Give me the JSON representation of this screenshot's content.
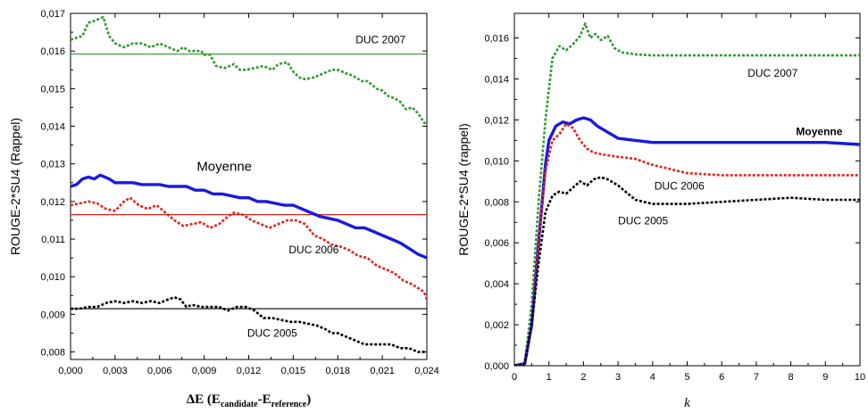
{
  "chart_data": [
    {
      "type": "line",
      "xlabel": {
        "main": "ΔE (E",
        "sub1": "candidate",
        "mid": "-E",
        "sub2": "reference",
        "end": ")"
      },
      "ylabel": "ROUGE-2*SU4 (Rappel)",
      "xlim": [
        0,
        0.024
      ],
      "ylim": [
        0.0078,
        0.017
      ],
      "xticks": [
        "0,000",
        "0,003",
        "0,006",
        "0,009",
        "0,012",
        "0,015",
        "0,018",
        "0,021",
        "0,024"
      ],
      "yticks": [
        "0,008",
        "0,009",
        "0,010",
        "0,011",
        "0,012",
        "0,013",
        "0,014",
        "0,015",
        "0,016",
        "0,017"
      ],
      "series": [
        {
          "name": "DUC 2007",
          "color": "#2e9a2e",
          "style": "dotted",
          "width": 2.6,
          "x": [
            0,
            0.0008,
            0.0012,
            0.0016,
            0.0022,
            0.0026,
            0.003,
            0.0036,
            0.0042,
            0.0048,
            0.0054,
            0.006,
            0.0066,
            0.0072,
            0.0076,
            0.008,
            0.0084,
            0.0088,
            0.009,
            0.0094,
            0.0098,
            0.0104,
            0.011,
            0.0114,
            0.0118,
            0.0124,
            0.013,
            0.0136,
            0.014,
            0.0146,
            0.015,
            0.0154,
            0.0158,
            0.0164,
            0.017,
            0.0176,
            0.018,
            0.0186,
            0.019,
            0.0196,
            0.02,
            0.0206,
            0.021,
            0.0214,
            0.0218,
            0.0222,
            0.0226,
            0.023,
            0.0234,
            0.0238,
            0.024
          ],
          "y": [
            0.0163,
            0.0164,
            0.01675,
            0.0168,
            0.0169,
            0.0164,
            0.0162,
            0.0161,
            0.0162,
            0.0162,
            0.0161,
            0.0162,
            0.0161,
            0.016,
            0.0161,
            0.016,
            0.016,
            0.016,
            0.0159,
            0.0159,
            0.0156,
            0.01555,
            0.01565,
            0.0155,
            0.0155,
            0.01555,
            0.0156,
            0.0155,
            0.01565,
            0.0157,
            0.01545,
            0.0153,
            0.01525,
            0.0153,
            0.0154,
            0.0155,
            0.0155,
            0.0154,
            0.01535,
            0.0152,
            0.0152,
            0.015,
            0.01495,
            0.0148,
            0.01475,
            0.01465,
            0.01445,
            0.0145,
            0.01435,
            0.0141,
            0.01405
          ]
        },
        {
          "name": "Moyenne",
          "color": "#1a1adc",
          "style": "solid",
          "width": 3.4,
          "x": [
            0,
            0.0004,
            0.0008,
            0.0012,
            0.0016,
            0.002,
            0.0026,
            0.003,
            0.0036,
            0.0042,
            0.0048,
            0.0054,
            0.006,
            0.0066,
            0.0072,
            0.0078,
            0.0084,
            0.009,
            0.0096,
            0.0102,
            0.0108,
            0.0114,
            0.012,
            0.0126,
            0.0132,
            0.0138,
            0.0144,
            0.015,
            0.0156,
            0.0162,
            0.0168,
            0.0174,
            0.018,
            0.0186,
            0.0192,
            0.0198,
            0.0204,
            0.021,
            0.0216,
            0.0222,
            0.0228,
            0.0234,
            0.024
          ],
          "y": [
            0.0124,
            0.01245,
            0.0126,
            0.01265,
            0.0126,
            0.0127,
            0.0126,
            0.0125,
            0.0125,
            0.0125,
            0.01245,
            0.01245,
            0.01245,
            0.0124,
            0.0124,
            0.0124,
            0.0123,
            0.0123,
            0.0122,
            0.0122,
            0.01215,
            0.0121,
            0.0121,
            0.012,
            0.012,
            0.01195,
            0.0119,
            0.0119,
            0.0118,
            0.0117,
            0.0116,
            0.01155,
            0.0115,
            0.0114,
            0.0113,
            0.0113,
            0.0112,
            0.0111,
            0.011,
            0.0109,
            0.01075,
            0.0106,
            0.0105
          ]
        },
        {
          "name": "DUC 2006",
          "color": "#e0241c",
          "style": "dotted",
          "width": 2.6,
          "x": [
            0,
            0.0006,
            0.0012,
            0.0018,
            0.0024,
            0.003,
            0.0036,
            0.004,
            0.0046,
            0.0052,
            0.0058,
            0.0064,
            0.007,
            0.0076,
            0.0082,
            0.0088,
            0.0094,
            0.01,
            0.0106,
            0.011,
            0.0116,
            0.0122,
            0.0128,
            0.0134,
            0.014,
            0.0146,
            0.0152,
            0.0158,
            0.0164,
            0.017,
            0.0176,
            0.0182,
            0.0188,
            0.0194,
            0.02,
            0.0206,
            0.0212,
            0.0218,
            0.0224,
            0.023,
            0.0234,
            0.0238,
            0.024
          ],
          "y": [
            0.0119,
            0.01195,
            0.012,
            0.01195,
            0.0118,
            0.01175,
            0.012,
            0.0121,
            0.0119,
            0.0118,
            0.0119,
            0.0117,
            0.0115,
            0.01135,
            0.0114,
            0.01145,
            0.0113,
            0.0114,
            0.0116,
            0.0117,
            0.01165,
            0.0115,
            0.0114,
            0.0113,
            0.0114,
            0.0115,
            0.0115,
            0.0114,
            0.0111,
            0.011,
            0.01085,
            0.0108,
            0.0107,
            0.01055,
            0.0105,
            0.0103,
            0.0102,
            0.0101,
            0.0099,
            0.0098,
            0.0097,
            0.0096,
            0.0094
          ]
        },
        {
          "name": "DUC 2005",
          "color": "#000000",
          "style": "dotted",
          "width": 2.6,
          "x": [
            0,
            0.0006,
            0.0012,
            0.0018,
            0.0024,
            0.003,
            0.0036,
            0.0042,
            0.0048,
            0.0054,
            0.006,
            0.0066,
            0.007,
            0.0074,
            0.0078,
            0.0082,
            0.0088,
            0.0094,
            0.01,
            0.0106,
            0.0112,
            0.0118,
            0.0124,
            0.013,
            0.0136,
            0.0142,
            0.0148,
            0.0154,
            0.016,
            0.0166,
            0.0172,
            0.0176,
            0.018,
            0.0186,
            0.0192,
            0.0198,
            0.0204,
            0.021,
            0.0216,
            0.0222,
            0.0228,
            0.0234,
            0.024
          ],
          "y": [
            0.00915,
            0.00915,
            0.0092,
            0.0092,
            0.0093,
            0.00935,
            0.0093,
            0.00935,
            0.0093,
            0.00935,
            0.0093,
            0.0094,
            0.00945,
            0.0094,
            0.0092,
            0.00925,
            0.0092,
            0.0092,
            0.0092,
            0.0091,
            0.0092,
            0.0092,
            0.0091,
            0.0089,
            0.0089,
            0.00885,
            0.0088,
            0.0088,
            0.00875,
            0.0087,
            0.0086,
            0.0085,
            0.0085,
            0.0084,
            0.0083,
            0.0082,
            0.0082,
            0.0082,
            0.0082,
            0.0081,
            0.0081,
            0.008,
            0.008
          ]
        }
      ],
      "hlines": [
        {
          "value": 0.01592,
          "color": "#2e9a2e"
        },
        {
          "value": 0.01165,
          "color": "#e0241c"
        },
        {
          "value": 0.00915,
          "color": "#000000"
        }
      ],
      "annotations": [
        {
          "text": "DUC 2007",
          "x": 0.0192,
          "y": 0.0162,
          "class": "ann"
        },
        {
          "text": "Moyenne",
          "x": 0.0085,
          "y": 0.01282,
          "class": "ann-big"
        },
        {
          "text": "DUC 2006",
          "x": 0.0147,
          "y": 0.01062,
          "class": "ann"
        },
        {
          "text": "DUC 2005",
          "x": 0.0119,
          "y": 0.0084,
          "class": "ann"
        }
      ]
    },
    {
      "type": "line",
      "xlabel": "k",
      "ylabel": "ROUGE-2*SU4 (rappel)",
      "xlim": [
        0,
        10
      ],
      "ylim": [
        0,
        0.0172
      ],
      "xticks": [
        "0",
        "1",
        "2",
        "3",
        "4",
        "5",
        "6",
        "7",
        "8",
        "9",
        "10"
      ],
      "yticks": [
        "0,000",
        "0,002",
        "0,004",
        "0,006",
        "0,008",
        "0,010",
        "0,012",
        "0,014",
        "0,016"
      ],
      "series": [
        {
          "name": "DUC 2007",
          "color": "#2e9a2e",
          "style": "dotted",
          "width": 2.6,
          "x": [
            0,
            0.3,
            0.5,
            0.7,
            0.9,
            1.1,
            1.3,
            1.5,
            1.7,
            1.9,
            2.05,
            2.2,
            2.35,
            2.5,
            2.7,
            2.9,
            3.1,
            3.5,
            4,
            5,
            6,
            7,
            8,
            9,
            10
          ],
          "y": [
            0,
            0.0001,
            0.003,
            0.008,
            0.012,
            0.015,
            0.0156,
            0.0154,
            0.0157,
            0.0161,
            0.0167,
            0.016,
            0.0162,
            0.0159,
            0.0161,
            0.0155,
            0.0153,
            0.0152,
            0.01515,
            0.01515,
            0.01515,
            0.01515,
            0.01515,
            0.01515,
            0.01515
          ]
        },
        {
          "name": "Moyenne",
          "color": "#1a1adc",
          "style": "solid",
          "width": 3.4,
          "x": [
            0,
            0.3,
            0.5,
            0.7,
            0.9,
            1.0,
            1.2,
            1.4,
            1.6,
            1.8,
            2.0,
            2.2,
            2.4,
            2.6,
            2.8,
            3.0,
            3.5,
            4,
            5,
            6,
            7,
            8,
            9,
            10
          ],
          "y": [
            0,
            0.0001,
            0.002,
            0.006,
            0.0098,
            0.011,
            0.0117,
            0.0119,
            0.0118,
            0.012,
            0.0121,
            0.012,
            0.0117,
            0.0115,
            0.0113,
            0.0111,
            0.011,
            0.0109,
            0.0109,
            0.0109,
            0.0109,
            0.0109,
            0.0109,
            0.0108
          ]
        },
        {
          "name": "DUC 2006",
          "color": "#e0241c",
          "style": "dotted",
          "width": 2.6,
          "x": [
            0,
            0.3,
            0.5,
            0.7,
            0.9,
            1.1,
            1.3,
            1.5,
            1.7,
            1.9,
            2.1,
            2.3,
            2.6,
            3.0,
            3.5,
            4.0,
            5,
            6,
            7,
            8,
            9,
            10
          ],
          "y": [
            0,
            0.0001,
            0.002,
            0.006,
            0.0095,
            0.011,
            0.0113,
            0.0118,
            0.0116,
            0.011,
            0.0106,
            0.0104,
            0.0103,
            0.0102,
            0.0101,
            0.0098,
            0.0094,
            0.0093,
            0.0093,
            0.0093,
            0.0093,
            0.0093
          ]
        },
        {
          "name": "DUC 2005",
          "color": "#000000",
          "style": "dotted",
          "width": 2.6,
          "x": [
            0,
            0.3,
            0.5,
            0.7,
            0.9,
            1.1,
            1.3,
            1.5,
            1.7,
            1.9,
            2.1,
            2.3,
            2.5,
            2.7,
            3.0,
            3.5,
            4,
            5,
            6,
            7,
            8,
            9,
            10
          ],
          "y": [
            0,
            0.0001,
            0.002,
            0.005,
            0.0075,
            0.0083,
            0.0085,
            0.0084,
            0.0087,
            0.009,
            0.0088,
            0.0091,
            0.0092,
            0.0091,
            0.0088,
            0.0081,
            0.0079,
            0.0079,
            0.008,
            0.0081,
            0.0082,
            0.0081,
            0.0081
          ]
        }
      ],
      "annotations": [
        {
          "text": "DUC 2007",
          "x": 6.75,
          "y": 0.0141,
          "class": "ann"
        },
        {
          "text": "Moyenne",
          "x": 8.15,
          "y": 0.01125,
          "class": "ann-bold"
        },
        {
          "text": "DUC 2006",
          "x": 4.05,
          "y": 0.0086,
          "class": "ann"
        },
        {
          "text": "DUC 2005",
          "x": 3.0,
          "y": 0.0069,
          "class": "ann"
        }
      ]
    }
  ]
}
